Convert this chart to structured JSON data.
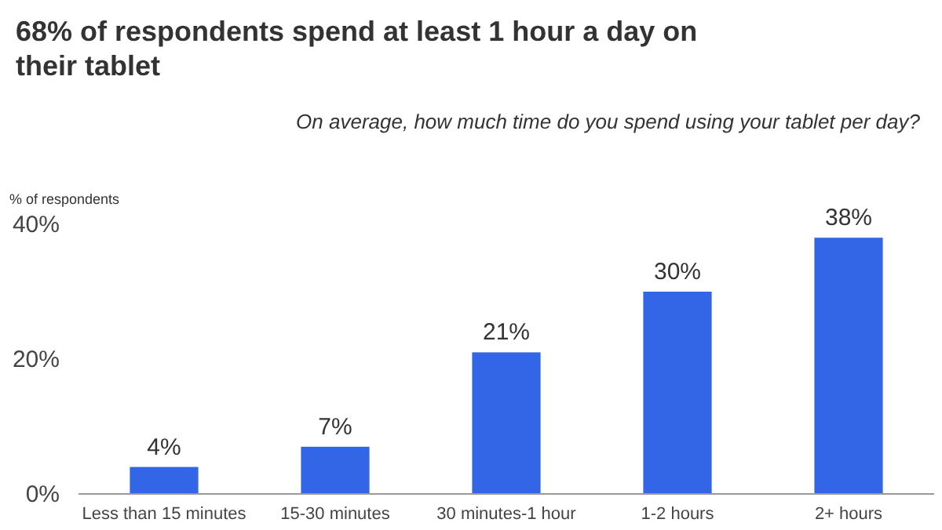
{
  "chart_data": {
    "type": "bar",
    "title": "68% of respondents spend at least 1 hour a day on their tablet",
    "subtitle": "On average, how much time do you spend using your tablet per day?",
    "ylabel": "% of respondents",
    "categories": [
      "Less than 15 minutes",
      "15-30 minutes",
      "30 minutes-1 hour",
      "1-2 hours",
      "2+ hours"
    ],
    "values": [
      4,
      7,
      21,
      30,
      38
    ],
    "value_labels": [
      "4%",
      "7%",
      "21%",
      "30%",
      "38%"
    ],
    "color": "#3366e6",
    "ylim": [
      0,
      40
    ],
    "yticks": [
      {
        "value": 0,
        "label": "0%"
      },
      {
        "value": 20,
        "label": "20%"
      },
      {
        "value": 40,
        "label": "40%"
      }
    ],
    "grid": false
  }
}
